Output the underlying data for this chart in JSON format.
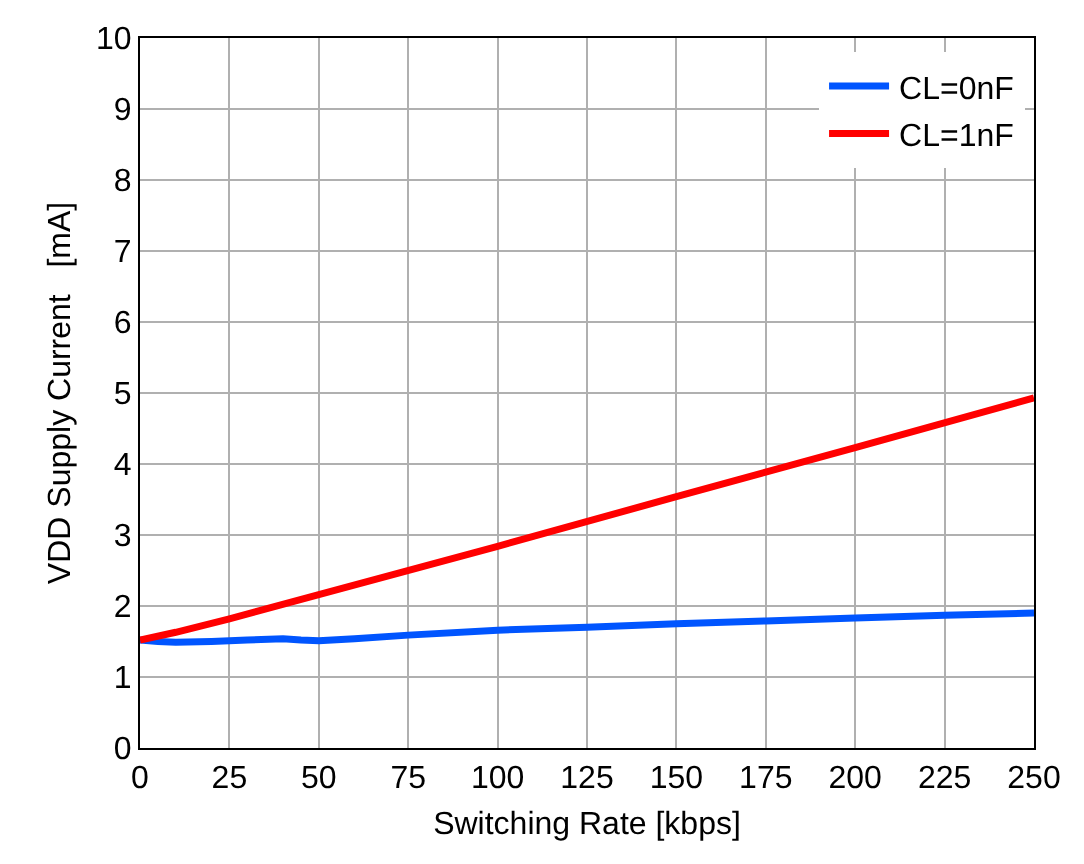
{
  "chart_data": {
    "type": "line",
    "xlabel": "Switching Rate [kbps]",
    "ylabel": "VDD Supply Current   [mA]",
    "xlim": [
      0,
      250
    ],
    "xticks": [
      0,
      25,
      50,
      75,
      100,
      125,
      150,
      175,
      200,
      225,
      250
    ],
    "ylim": [
      0,
      10
    ],
    "yticks": [
      0,
      1,
      2,
      3,
      4,
      5,
      6,
      7,
      8,
      9,
      10
    ],
    "grid": true,
    "legend": "top right",
    "marker": "none",
    "line_style": "solid",
    "series": [
      {
        "name": "CL=0nF",
        "color": "#0055ff",
        "x": [
          0,
          5,
          10,
          20,
          30,
          40,
          45,
          50,
          60,
          75,
          100,
          125,
          150,
          175,
          200,
          225,
          250
        ],
        "values": [
          1.52,
          1.5,
          1.49,
          1.5,
          1.52,
          1.54,
          1.52,
          1.51,
          1.54,
          1.59,
          1.66,
          1.7,
          1.75,
          1.79,
          1.83,
          1.87,
          1.9
        ]
      },
      {
        "name": "CL=1nF",
        "color": "#ff0000",
        "x": [
          0,
          10,
          25,
          50,
          100,
          150,
          200,
          250
        ],
        "values": [
          1.52,
          1.63,
          1.82,
          2.16,
          2.84,
          3.54,
          4.23,
          4.93
        ]
      }
    ]
  }
}
